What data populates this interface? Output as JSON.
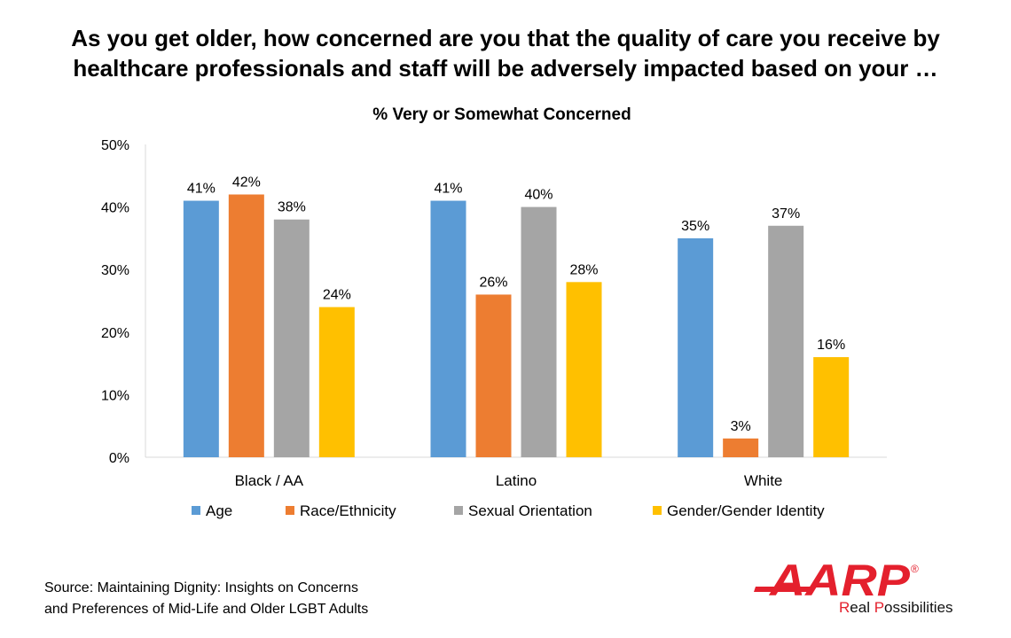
{
  "title_line1": "As you get older, how concerned are you that the quality of care you receive by",
  "title_line2": "healthcare professionals and staff will be adversely impacted based on your …",
  "source_line1": "Source: Maintaining Dignity: Insights on Concerns",
  "source_line2": "and Preferences of Mid-Life and Older LGBT Adults",
  "logo": {
    "text": "AARP",
    "registered": "®",
    "tagline_r": "R",
    "tagline_rest1": "eal ",
    "tagline_p": "P",
    "tagline_rest2": "ossibilities",
    "color": "#e4202d"
  },
  "chart_data": {
    "type": "bar",
    "title": "% Very or Somewhat Concerned",
    "categories": [
      "Black / AA",
      "Latino",
      "White"
    ],
    "series": [
      {
        "name": "Age",
        "color": "#5b9bd5",
        "values": [
          41,
          41,
          35
        ]
      },
      {
        "name": "Race/Ethnicity",
        "color": "#ed7d31",
        "values": [
          42,
          26,
          3
        ]
      },
      {
        "name": "Sexual Orientation",
        "color": "#a5a5a5",
        "values": [
          38,
          40,
          37
        ]
      },
      {
        "name": "Gender/Gender Identity",
        "color": "#ffc000",
        "values": [
          24,
          28,
          16
        ]
      }
    ],
    "ylim": [
      0,
      50
    ],
    "yticks": [
      0,
      10,
      20,
      30,
      40,
      50
    ],
    "value_format": "percent",
    "grid": false,
    "legend": "bottom",
    "data_labels": true
  }
}
